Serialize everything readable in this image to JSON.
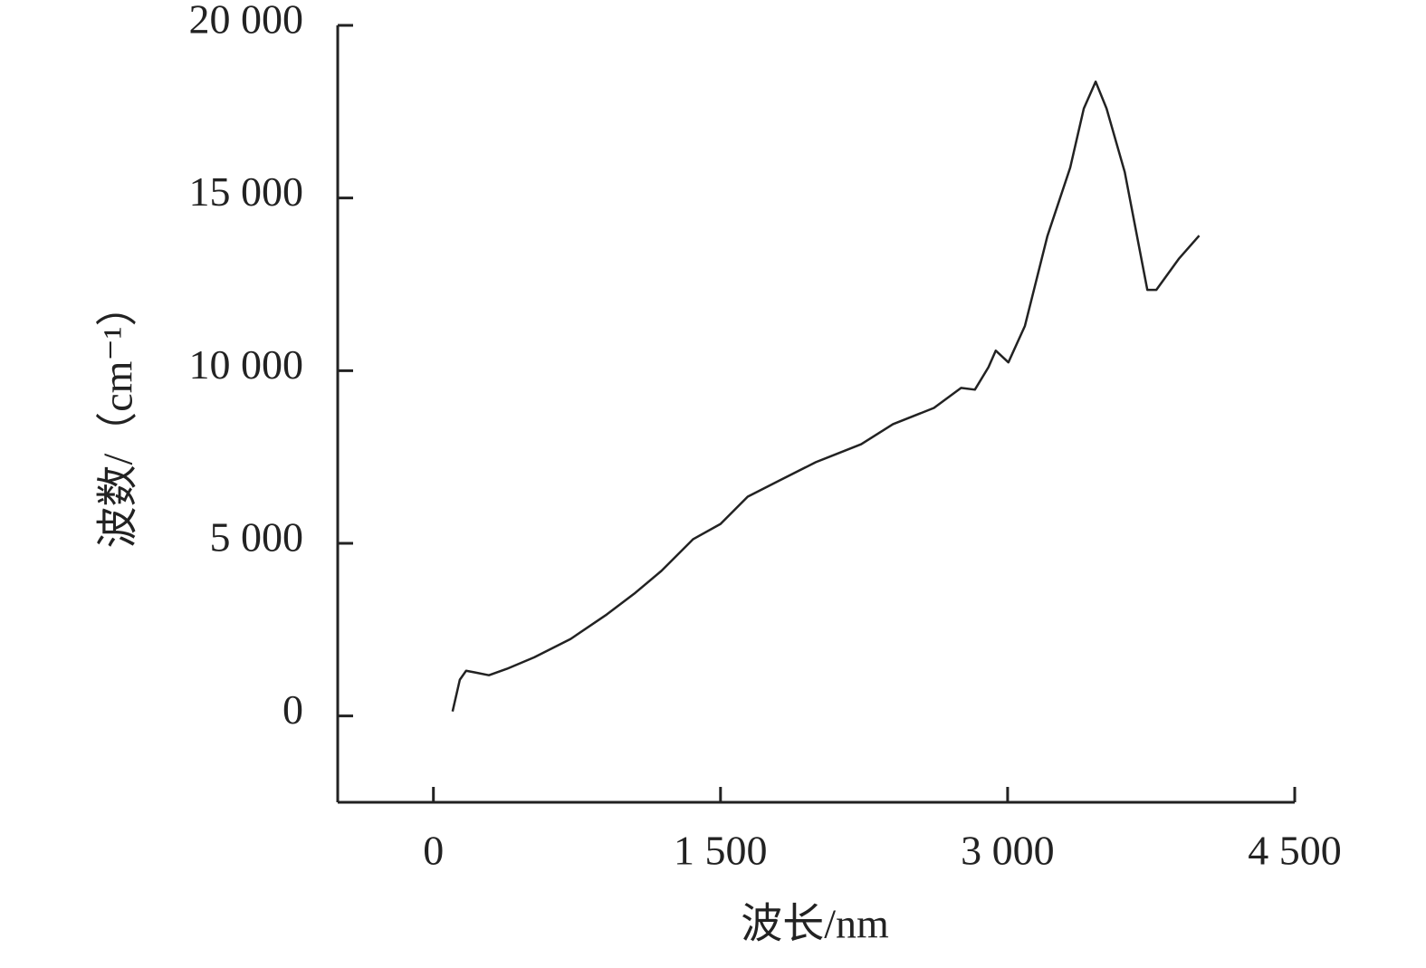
{
  "chart_data": {
    "type": "line",
    "xlabel": "波长/nm",
    "ylabel": "波数/（cm⁻¹）",
    "x": [
      100,
      138,
      171,
      218,
      290,
      384,
      527,
      717,
      906,
      1049,
      1191,
      1357,
      1500,
      1642,
      1808,
      1998,
      2235,
      2401,
      2615,
      2757,
      2829,
      2900,
      2938,
      3004,
      3090,
      3208,
      3327,
      3398,
      3460,
      3517,
      3612,
      3730,
      3777,
      3896,
      4001
    ],
    "series": [
      {
        "color": "#222222",
        "values": [
          130,
          1050,
          1310,
          1260,
          1180,
          1365,
          1700,
          2230,
          2940,
          3540,
          4200,
          5120,
          5560,
          6350,
          6820,
          7350,
          7870,
          8450,
          8920,
          9500,
          9450,
          10100,
          10580,
          10240,
          11290,
          13900,
          15880,
          17590,
          18370,
          17590,
          15750,
          12340,
          12340,
          13250,
          13910
        ]
      }
    ],
    "xlim": [
      -500,
      4500
    ],
    "xticks": [
      0,
      {
        "value": 1500,
        "label": "1 500"
      },
      {
        "value": 3000,
        "label": "3 000"
      },
      {
        "value": 4500,
        "label": "4 500"
      }
    ],
    "ylim": [
      -2500,
      20000
    ],
    "yticks": [
      0,
      {
        "value": 5000,
        "label": "5 000"
      },
      {
        "value": 10000,
        "label": "10 000"
      },
      {
        "value": 15000,
        "label": "15 000"
      },
      {
        "value": 20000,
        "label": "20 000"
      }
    ]
  }
}
